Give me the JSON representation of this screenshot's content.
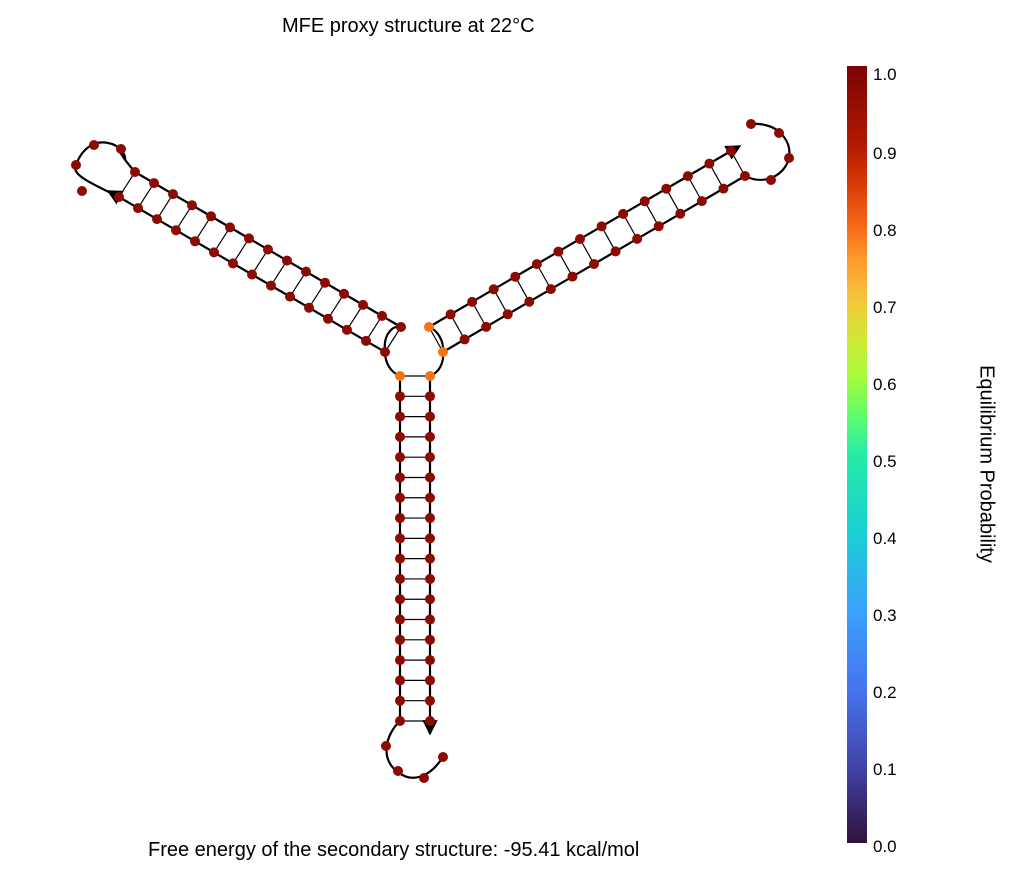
{
  "title": "MFE proxy structure at 22°C",
  "footer": "Free energy of the secondary structure: -95.41 kcal/mol",
  "colorbar": {
    "label": "Equilibrium Probability",
    "ticks": [
      "0.0",
      "0.1",
      "0.2",
      "0.3",
      "0.4",
      "0.5",
      "0.6",
      "0.7",
      "0.8",
      "0.9",
      "1.0"
    ]
  },
  "colors": {
    "high_probability_base": "#8b0a02",
    "lower_probability_base": "#f27417",
    "backbone": "#000000"
  },
  "structure": {
    "helices": [
      {
        "arm": "bottom-stem",
        "base_pairs": 18
      },
      {
        "arm": "upper-left-arm",
        "base_pairs": 15
      },
      {
        "arm": "upper-right-arm",
        "base_pairs": 15
      }
    ],
    "central_loop_orange_bases": 4,
    "hairpin_loop_bases": 4
  }
}
